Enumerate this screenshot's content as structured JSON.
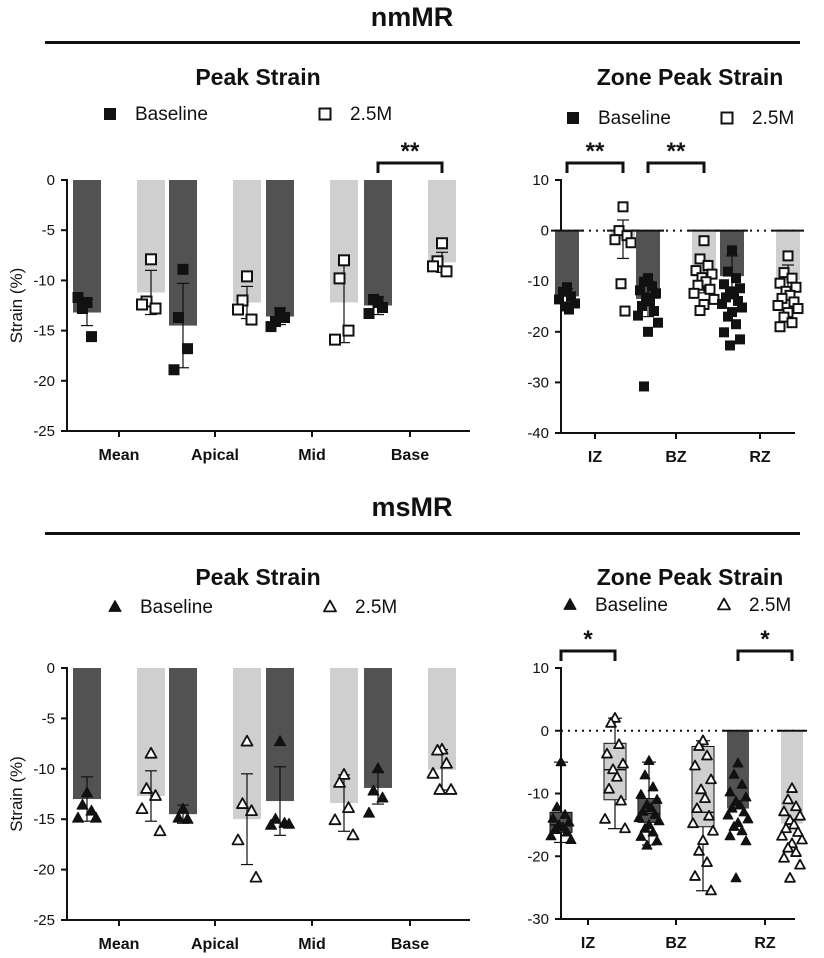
{
  "figure": {
    "sections": [
      {
        "title": "nmMR"
      },
      {
        "title": "msMR"
      }
    ]
  },
  "colors": {
    "baseline_bar": "#525252",
    "followup_bar": "#cfcfcf",
    "axis": "#111111",
    "marker": "#111111"
  },
  "chart_data": [
    {
      "id": "nm_peak",
      "type": "bar",
      "title": "Peak Strain",
      "ylabel": "Strain (%)",
      "ylim": [
        -25,
        0
      ],
      "yticks": [
        0,
        -5,
        -10,
        -15,
        -20,
        -25
      ],
      "categories": [
        "Mean",
        "Apical",
        "Mid",
        "Base"
      ],
      "marker": "square",
      "legend": [
        "Baseline",
        "2.5M"
      ],
      "series": [
        {
          "name": "Baseline",
          "means": [
            -13.2,
            -14.5,
            -13.6,
            -12.5
          ],
          "sd": [
            1.3,
            4.2,
            0.8,
            0.9
          ],
          "points": [
            [
              -12.2,
              -12.8,
              -15.6,
              -11.7
            ],
            [
              -8.9,
              -13.7,
              -16.8,
              -18.9
            ],
            [
              -13.2,
              -14.1,
              -13.7,
              -14.6
            ],
            [
              -12.2,
              -11.9,
              -12.7,
              -13.3
            ]
          ]
        },
        {
          "name": "2.5M",
          "means": [
            -11.2,
            -12.2,
            -12.2,
            -8.2
          ],
          "sd": [
            2.2,
            1.6,
            4.0,
            1.0
          ],
          "points": [
            [
              -7.9,
              -12.1,
              -12.8,
              -12.4
            ],
            [
              -9.6,
              -12.0,
              -13.9,
              -12.9
            ],
            [
              -8.0,
              -9.8,
              -15.0,
              -15.9
            ],
            [
              -6.3,
              -8.1,
              -9.1,
              -8.6
            ]
          ]
        }
      ],
      "significance": [
        {
          "category": "Base",
          "label": "**"
        }
      ]
    },
    {
      "id": "nm_zone",
      "type": "bar",
      "title": "Zone Peak Strain",
      "ylabel": "",
      "ylim": [
        -40,
        10
      ],
      "yticks": [
        10,
        0,
        -10,
        -20,
        -30,
        -40
      ],
      "categories": [
        "IZ",
        "BZ",
        "RZ"
      ],
      "marker": "square",
      "legend": [
        "Baseline",
        "2.5M"
      ],
      "series": [
        {
          "name": "Baseline",
          "means": [
            -13.0,
            -13.5,
            -9.0
          ],
          "sd": [
            1.5,
            3.5,
            4.0
          ],
          "points": [
            [
              -11.2,
              -12.1,
              -13.0,
              -13.6,
              -14.4,
              -15.0,
              -15.6
            ],
            [
              -9.4,
              -10.1,
              -11.0,
              -11.8,
              -12.4,
              -13.2,
              -14.0,
              -14.9,
              -15.9,
              -16.8,
              -18.2,
              -20.0,
              -30.8
            ],
            [
              -3.9,
              -8.1,
              -9.4,
              -10.6,
              -11.4,
              -12.0,
              -12.6,
              -13.2,
              -13.9,
              -14.5,
              -15.2,
              -16.1,
              -17.0,
              -18.5,
              -20.1,
              -21.5,
              -22.7
            ]
          ]
        },
        {
          "name": "2.5M",
          "means": [
            -1.7,
            -9.1,
            -9.8
          ],
          "sd": [
            3.8,
            3.2,
            3.0
          ],
          "points": [
            [
              4.7,
              0.0,
              -1.0,
              -1.8,
              -2.4,
              -10.5,
              -15.9
            ],
            [
              -2.0,
              -5.6,
              -6.9,
              -7.9,
              -8.6,
              -9.3,
              -10.1,
              -10.8,
              -11.6,
              -12.4,
              -13.6,
              -14.6,
              -15.8
            ],
            [
              -5.0,
              -8.3,
              -9.4,
              -10.4,
              -11.2,
              -12.0,
              -12.8,
              -13.4,
              -14.1,
              -14.8,
              -15.4,
              -16.2,
              -17.1,
              -18.2,
              -19.0
            ]
          ]
        }
      ],
      "significance": [
        {
          "category": "IZ",
          "label": "**"
        },
        {
          "category": "BZ",
          "label": "**"
        }
      ]
    },
    {
      "id": "ms_peak",
      "type": "bar",
      "title": "Peak Strain",
      "ylabel": "Strain (%)",
      "ylim": [
        -25,
        0
      ],
      "yticks": [
        0,
        -5,
        -10,
        -15,
        -20,
        -25
      ],
      "categories": [
        "Mean",
        "Apical",
        "Mid",
        "Base"
      ],
      "marker": "triangle",
      "legend": [
        "Baseline",
        "2.5M"
      ],
      "series": [
        {
          "name": "Baseline",
          "means": [
            -13.0,
            -14.5,
            -13.2,
            -11.9
          ],
          "sd": [
            2.2,
            0.9,
            3.4,
            1.6
          ],
          "points": [
            [
              -12.4,
              -13.6,
              -14.2,
              -14.9,
              -14.9
            ],
            [
              -14.0,
              -14.9,
              -15.0
            ],
            [
              -7.3,
              -15.0,
              -15.4,
              -15.6,
              -15.5
            ],
            [
              -10.0,
              -12.2,
              -12.9,
              -14.4
            ]
          ]
        },
        {
          "name": "2.5M",
          "means": [
            -12.7,
            -15.0,
            -13.4,
            -10.1
          ],
          "sd": [
            2.5,
            4.5,
            2.8,
            2.0
          ],
          "points": [
            [
              -8.5,
              -12.0,
              -12.7,
              -14.0,
              -16.2
            ],
            [
              -7.3,
              -13.5,
              -14.2,
              -17.1,
              -20.8
            ],
            [
              -10.6,
              -11.4,
              -13.9,
              -15.1,
              -16.6
            ],
            [
              -8.1,
              -8.2,
              -9.5,
              -10.5,
              -12.1,
              -12.1
            ]
          ]
        }
      ]
    },
    {
      "id": "ms_zone",
      "type": "box",
      "title": "Zone Peak Strain",
      "ylabel": "",
      "ylim": [
        -30,
        10
      ],
      "yticks": [
        10,
        0,
        -10,
        -20,
        -30
      ],
      "categories": [
        "IZ",
        "BZ",
        "RZ"
      ],
      "marker": "triangle",
      "legend": [
        "Baseline",
        "2.5M"
      ],
      "series": [
        {
          "name": "Baseline",
          "boxes": [
            {
              "min": -17.8,
              "q1": -16.2,
              "median": -15.0,
              "q3": -13.0,
              "max": -5.0
            },
            {
              "min": -18.2,
              "q1": -14.6,
              "median": -13.2,
              "q3": -10.8,
              "max": -5.0
            },
            null
          ],
          "bar_mean": [
            null,
            null,
            -12.4
          ],
          "points": [
            [
              -5.0,
              -12.2,
              -13.4,
              -14.0,
              -14.6,
              -15.0,
              -15.4,
              -15.8,
              -16.2,
              -16.8,
              -17.4
            ],
            [
              -4.8,
              -7.1,
              -9.0,
              -10.2,
              -11.0,
              -11.8,
              -12.3,
              -12.9,
              -13.4,
              -13.9,
              -14.4,
              -15.0,
              -15.6,
              -16.2,
              -16.9,
              -17.6,
              -18.3
            ],
            [
              -5.2,
              -7.0,
              -8.6,
              -9.8,
              -10.6,
              -11.3,
              -11.9,
              -12.4,
              -13.0,
              -13.5,
              -14.1,
              -14.7,
              -15.3,
              -16.0,
              -16.8,
              -17.6,
              -23.5
            ]
          ]
        },
        {
          "name": "2.5M",
          "boxes": [
            {
              "min": -15.6,
              "q1": -11.0,
              "median": -6.2,
              "q3": -2.0,
              "max": 2.0
            },
            {
              "min": -25.5,
              "q1": -15.3,
              "median": -13.0,
              "q3": -2.5,
              "max": -1.6
            },
            null
          ],
          "bar_mean": [
            null,
            null,
            -14.8
          ],
          "points": [
            [
              2.0,
              1.2,
              -2.2,
              -3.7,
              -5.3,
              -6.2,
              -7.4,
              -9.3,
              -11.2,
              -14.1,
              -15.6
            ],
            [
              -1.6,
              -2.5,
              -4.0,
              -5.6,
              -7.8,
              -9.4,
              -10.8,
              -12.4,
              -13.6,
              -14.8,
              -16.0,
              -17.5,
              -19.2,
              -21.0,
              -23.2,
              -25.5
            ],
            [
              -9.2,
              -11.0,
              -12.1,
              -12.9,
              -13.6,
              -14.3,
              -15.0,
              -15.6,
              -16.2,
              -16.8,
              -17.4,
              -18.0,
              -18.7,
              -19.4,
              -20.3,
              -21.4,
              -23.5
            ]
          ]
        }
      ],
      "significance": [
        {
          "category": "IZ",
          "label": "*"
        },
        {
          "category": "RZ",
          "label": "*"
        }
      ]
    }
  ]
}
